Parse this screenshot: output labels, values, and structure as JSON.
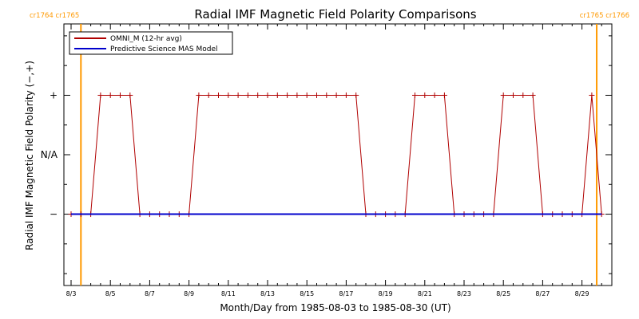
{
  "chart_data": {
    "type": "line",
    "title": "Radial IMF Magnetic Field Polarity Comparisons",
    "xlabel": "Month/Day from 1985-08-03 to 1985-08-30 (UT)",
    "ylabel": "Radial IMF Magnetic Field Polarity (−,+)",
    "x_tick_labels": [
      "8/3",
      "8/5",
      "8/7",
      "8/9",
      "8/11",
      "8/13",
      "8/15",
      "8/17",
      "8/19",
      "8/21",
      "8/23",
      "8/25",
      "8/27",
      "8/29"
    ],
    "x_tick_days": [
      0,
      2,
      4,
      6,
      8,
      10,
      12,
      14,
      16,
      18,
      20,
      22,
      24,
      26
    ],
    "xlim_days": [
      0,
      27
    ],
    "y_tick_labels": [
      "−",
      "N/A",
      "+"
    ],
    "y_tick_values": [
      -1,
      0,
      1
    ],
    "ylim": [
      -2.2,
      2.2
    ],
    "carrington_rotations": [
      {
        "label": "cr1764 cr1765",
        "day": 0.5,
        "align": "start"
      },
      {
        "label": "cr1765 cr1766",
        "day": 26.75,
        "align": "end"
      }
    ],
    "legend": {
      "position": "top-left",
      "entries": [
        {
          "label": "OMNI_M (12-hr avg)",
          "color": "#b00000"
        },
        {
          "label": "Predictive Science MAS Model",
          "color": "#0000cc"
        }
      ]
    },
    "series": [
      {
        "name": "OMNI_M (12-hr avg)",
        "color": "#b00000",
        "x_days": [
          0.0,
          0.5,
          1.0,
          1.5,
          2.0,
          2.5,
          3.0,
          3.5,
          4.0,
          4.5,
          5.0,
          5.5,
          6.0,
          6.5,
          7.0,
          7.5,
          8.0,
          8.5,
          9.0,
          9.5,
          10.0,
          10.5,
          11.0,
          11.5,
          12.0,
          12.5,
          13.0,
          13.5,
          14.0,
          14.5,
          15.0,
          15.5,
          16.0,
          16.5,
          17.0,
          17.5,
          18.0,
          18.5,
          19.0,
          19.5,
          20.0,
          20.5,
          21.0,
          21.5,
          22.0,
          22.5,
          23.0,
          23.5,
          24.0,
          24.5,
          25.0,
          25.5,
          26.0,
          26.5,
          27.0
        ],
        "values": [
          -1,
          -1,
          -1,
          1,
          1,
          1,
          1,
          -1,
          -1,
          -1,
          -1,
          -1,
          -1,
          1,
          1,
          1,
          1,
          1,
          1,
          1,
          1,
          1,
          1,
          1,
          1,
          1,
          1,
          1,
          1,
          1,
          -1,
          -1,
          -1,
          -1,
          -1,
          1,
          1,
          1,
          1,
          -1,
          -1,
          -1,
          -1,
          -1,
          1,
          1,
          1,
          1,
          -1,
          -1,
          -1,
          -1,
          -1,
          1,
          -1
        ]
      },
      {
        "name": "Predictive Science MAS Model",
        "color": "#0000cc",
        "x_days": [
          0,
          27
        ],
        "values": [
          -1,
          -1
        ]
      }
    ]
  }
}
